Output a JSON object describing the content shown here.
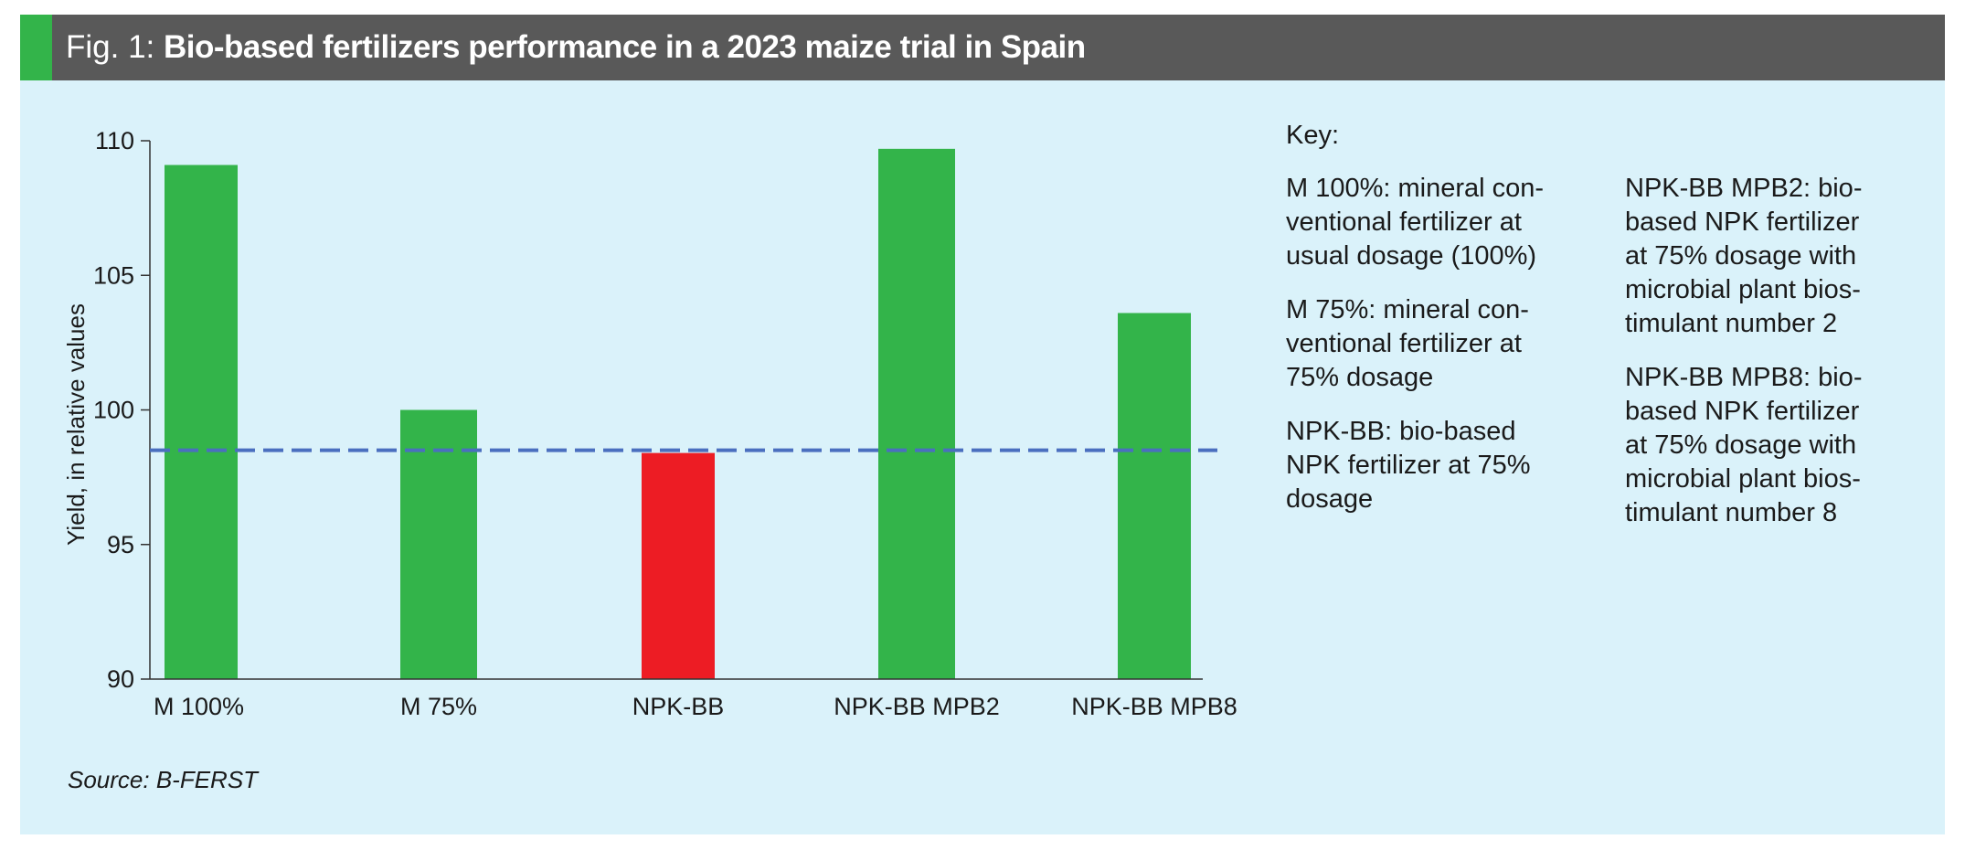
{
  "header": {
    "prefix": "Fig. 1: ",
    "title": "Bio-based fertilizers performance in a 2023 maize trial in Spain",
    "accent_color": "#33b44a",
    "background_color": "#595959"
  },
  "chart_data": {
    "type": "bar",
    "categories": [
      "M 100%",
      "M 75%",
      "NPK-BB",
      "NPK-BB MPB2",
      "NPK-BB MPB8"
    ],
    "values": [
      109.1,
      100.0,
      98.4,
      109.7,
      103.6
    ],
    "bar_colors": [
      "#33b44a",
      "#33b44a",
      "#ed1c24",
      "#33b44a",
      "#33b44a"
    ],
    "ylabel": "Yield, in relative values",
    "xlabel": "",
    "ylim": [
      90,
      110
    ],
    "yticks": [
      90,
      95,
      100,
      105,
      110
    ],
    "reference_line": {
      "value": 98.5,
      "style": "dashed",
      "color": "#4a6fbf"
    },
    "grid": false
  },
  "key": {
    "title": "Key:",
    "column_1": [
      "M 100%: mineral con-\nventional fertilizer at\nusual dosage (100%)",
      "M 75%: mineral con-\nventional fertilizer at\n75% dosage",
      "NPK-BB: bio-based\nNPK fertilizer at 75%\ndosage"
    ],
    "column_2": [
      "NPK-BB MPB2: bio-\nbased NPK fertilizer\nat 75% dosage with\nmicrobial plant bios-\ntimulant number 2",
      "NPK-BB MPB8: bio-\nbased NPK fertilizer\nat 75% dosage with\nmicrobial plant bios-\ntimulant number 8"
    ]
  },
  "source": "Source: B-FERST"
}
